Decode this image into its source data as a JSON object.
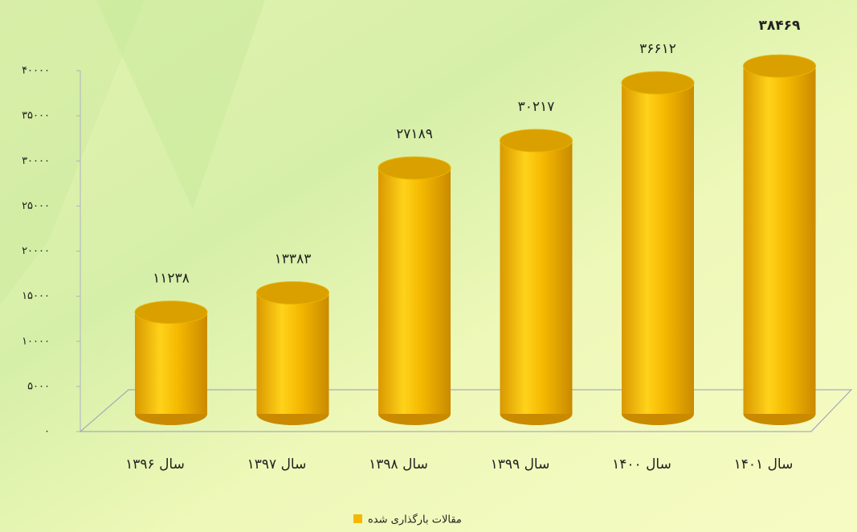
{
  "chart_data": {
    "type": "bar",
    "categories": [
      "سال ۱۳۹۶",
      "سال ۱۳۹۷",
      "سال ۱۳۹۸",
      "سال ۱۳۹۹",
      "سال ۱۴۰۰",
      "سال ۱۴۰۱"
    ],
    "series": [
      {
        "name": "مقالات بارگذاری شده",
        "color": "#f5b800",
        "values": [
          11238,
          13383,
          27189,
          30217,
          36612,
          38469
        ],
        "value_labels": [
          "۱۱۲۳۸",
          "۱۳۳۸۳",
          "۲۷۱۸۹",
          "۳۰۲۱۷",
          "۳۶۶۱۲",
          "۳۸۴۶۹"
        ]
      }
    ],
    "ylim": [
      0,
      40000
    ],
    "yticks": [
      {
        "value": 0,
        "label": "۰"
      },
      {
        "value": 5000,
        "label": "۵۰۰۰"
      },
      {
        "value": 10000,
        "label": "۱۰۰۰۰"
      },
      {
        "value": 15000,
        "label": "۱۵۰۰۰"
      },
      {
        "value": 20000,
        "label": "۲۰۰۰۰"
      },
      {
        "value": 25000,
        "label": "۲۵۰۰۰"
      },
      {
        "value": 30000,
        "label": "۳۰۰۰۰"
      },
      {
        "value": 35000,
        "label": "۳۵۰۰۰"
      },
      {
        "value": 40000,
        "label": "۴۰۰۰۰"
      }
    ],
    "legend": "bottom"
  }
}
